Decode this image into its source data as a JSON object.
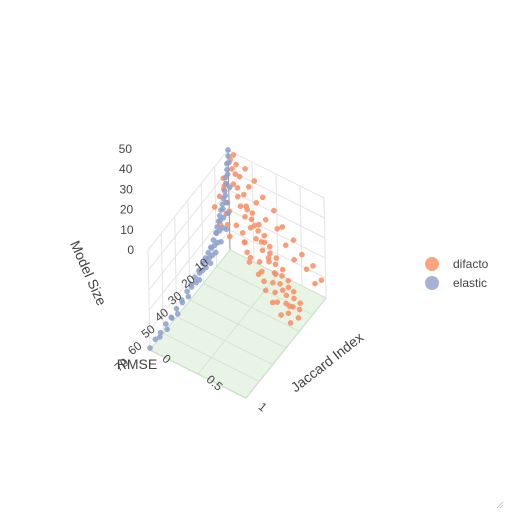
{
  "chart_data": {
    "type": "scatter",
    "title": "",
    "axes": {
      "x": {
        "label": "Jaccard Index",
        "range": [
          0,
          1
        ],
        "ticks": [
          "0",
          "0.5",
          "1"
        ]
      },
      "y": {
        "label": "RMSE",
        "range": [
          10,
          70
        ],
        "ticks": [
          "10",
          "20",
          "30",
          "40",
          "50",
          "60",
          "70"
        ]
      },
      "z": {
        "label": "Model Size",
        "range": [
          0,
          50
        ],
        "ticks": [
          "0",
          "10",
          "20",
          "30",
          "40",
          "50"
        ]
      }
    },
    "legend": {
      "placement": "right"
    },
    "series": [
      {
        "name": "difacto",
        "color": "#fc8d62",
        "description_points": [
          [
            0.05,
            12,
            48
          ],
          [
            0.08,
            13,
            45
          ],
          [
            0.1,
            12,
            42
          ],
          [
            0.12,
            15,
            40
          ],
          [
            0.15,
            14,
            38
          ],
          [
            0.18,
            16,
            36
          ],
          [
            0.2,
            13,
            35
          ],
          [
            0.22,
            17,
            33
          ],
          [
            0.25,
            15,
            32
          ],
          [
            0.28,
            18,
            30
          ],
          [
            0.3,
            14,
            29
          ],
          [
            0.32,
            16,
            28
          ],
          [
            0.35,
            19,
            27
          ],
          [
            0.38,
            15,
            26
          ],
          [
            0.4,
            17,
            25
          ],
          [
            0.42,
            20,
            24
          ],
          [
            0.45,
            16,
            23
          ],
          [
            0.48,
            18,
            22
          ],
          [
            0.5,
            21,
            21
          ],
          [
            0.52,
            17,
            20
          ],
          [
            0.55,
            19,
            19
          ],
          [
            0.58,
            22,
            18
          ],
          [
            0.6,
            18,
            17
          ],
          [
            0.62,
            20,
            16
          ],
          [
            0.65,
            23,
            15
          ],
          [
            0.68,
            19,
            14
          ],
          [
            0.7,
            21,
            13
          ],
          [
            0.72,
            24,
            12
          ],
          [
            0.75,
            20,
            11
          ],
          [
            0.78,
            22,
            10
          ],
          [
            0.8,
            25,
            9
          ],
          [
            0.82,
            21,
            8
          ],
          [
            0.85,
            23,
            7
          ],
          [
            0.88,
            26,
            6
          ],
          [
            0.9,
            22,
            5
          ],
          [
            0.92,
            24,
            4
          ],
          [
            0.95,
            27,
            3
          ],
          [
            0.06,
            18,
            44
          ],
          [
            0.09,
            20,
            41
          ],
          [
            0.14,
            22,
            37
          ],
          [
            0.17,
            24,
            34
          ],
          [
            0.21,
            26,
            31
          ],
          [
            0.26,
            28,
            28
          ],
          [
            0.31,
            22,
            26
          ],
          [
            0.36,
            24,
            24
          ],
          [
            0.41,
            26,
            22
          ],
          [
            0.46,
            28,
            20
          ],
          [
            0.51,
            24,
            18
          ],
          [
            0.56,
            26,
            16
          ],
          [
            0.61,
            28,
            14
          ],
          [
            0.66,
            25,
            12
          ],
          [
            0.71,
            27,
            10
          ],
          [
            0.76,
            29,
            8
          ],
          [
            0.81,
            26,
            6
          ],
          [
            0.86,
            28,
            4
          ],
          [
            0.91,
            30,
            2
          ],
          [
            0.07,
            11,
            50
          ],
          [
            0.11,
            12,
            47
          ],
          [
            0.16,
            13,
            43
          ],
          [
            0.24,
            12,
            39
          ],
          [
            0.33,
            13,
            34
          ],
          [
            0.44,
            14,
            29
          ],
          [
            0.53,
            12,
            25
          ],
          [
            0.63,
            13,
            20
          ],
          [
            0.73,
            14,
            16
          ],
          [
            0.83,
            12,
            12
          ],
          [
            0.93,
            13,
            8
          ],
          [
            0.13,
            19,
            30
          ],
          [
            0.23,
            21,
            27
          ],
          [
            0.34,
            23,
            23
          ],
          [
            0.43,
            25,
            19
          ],
          [
            0.54,
            27,
            15
          ],
          [
            0.64,
            29,
            11
          ],
          [
            0.74,
            31,
            9
          ],
          [
            0.84,
            32,
            6
          ],
          [
            0.19,
            11,
            46
          ],
          [
            0.27,
            10,
            41
          ],
          [
            0.37,
            11,
            36
          ],
          [
            0.47,
            10,
            31
          ],
          [
            0.57,
            11,
            26
          ],
          [
            0.67,
            10,
            21
          ],
          [
            0.77,
            11,
            17
          ],
          [
            0.87,
            10,
            13
          ],
          [
            0.97,
            11,
            9
          ],
          [
            0.29,
            17,
            33
          ],
          [
            0.39,
            19,
            29
          ],
          [
            0.49,
            21,
            25
          ],
          [
            0.59,
            23,
            21
          ],
          [
            0.69,
            25,
            17
          ],
          [
            0.79,
            27,
            13
          ],
          [
            0.89,
            29,
            9
          ],
          [
            0.04,
            16,
            38
          ],
          [
            0.03,
            19,
            35
          ],
          [
            0.02,
            22,
            32
          ],
          [
            0.12,
            25,
            28
          ]
        ]
      },
      {
        "name": "elastic",
        "color": "#8da0cb",
        "description_points": [
          [
            0.0,
            10,
            50
          ],
          [
            0.0,
            10,
            47
          ],
          [
            0.0,
            11,
            44
          ],
          [
            0.0,
            11,
            41
          ],
          [
            0.0,
            12,
            38
          ],
          [
            0.0,
            12,
            35
          ],
          [
            0.0,
            13,
            32
          ],
          [
            0.0,
            14,
            29
          ],
          [
            0.0,
            15,
            27
          ],
          [
            0.0,
            16,
            25
          ],
          [
            0.0,
            17,
            23
          ],
          [
            0.0,
            18,
            21
          ],
          [
            0.0,
            19,
            19
          ],
          [
            0.0,
            20,
            17
          ],
          [
            0.0,
            22,
            15
          ],
          [
            0.0,
            24,
            13
          ],
          [
            0.0,
            26,
            12
          ],
          [
            0.0,
            28,
            11
          ],
          [
            0.0,
            30,
            10
          ],
          [
            0.0,
            33,
            9
          ],
          [
            0.0,
            36,
            8
          ],
          [
            0.0,
            39,
            7
          ],
          [
            0.0,
            42,
            6
          ],
          [
            0.0,
            46,
            5
          ],
          [
            0.0,
            50,
            4
          ],
          [
            0.0,
            54,
            3
          ],
          [
            0.0,
            58,
            3
          ],
          [
            0.0,
            62,
            2
          ],
          [
            0.0,
            66,
            2
          ],
          [
            0.0,
            70,
            1
          ],
          [
            0.02,
            11,
            45
          ],
          [
            0.02,
            12,
            40
          ],
          [
            0.02,
            13,
            36
          ],
          [
            0.02,
            14,
            31
          ],
          [
            0.02,
            16,
            26
          ],
          [
            0.02,
            18,
            22
          ],
          [
            0.02,
            21,
            18
          ],
          [
            0.02,
            25,
            14
          ],
          [
            0.02,
            29,
            11
          ],
          [
            0.02,
            34,
            9
          ],
          [
            0.02,
            40,
            7
          ],
          [
            0.02,
            47,
            5
          ],
          [
            0.02,
            55,
            4
          ],
          [
            0.02,
            64,
            2
          ],
          [
            0.04,
            12,
            34
          ],
          [
            0.04,
            14,
            28
          ],
          [
            0.04,
            17,
            23
          ],
          [
            0.04,
            20,
            19
          ],
          [
            0.04,
            24,
            15
          ],
          [
            0.04,
            28,
            12
          ],
          [
            0.04,
            33,
            10
          ],
          [
            0.04,
            38,
            8
          ],
          [
            0.04,
            44,
            6
          ],
          [
            0.04,
            52,
            4
          ],
          [
            0.04,
            60,
            3
          ],
          [
            0.06,
            15,
            24
          ],
          [
            0.06,
            19,
            20
          ],
          [
            0.06,
            23,
            16
          ],
          [
            0.06,
            27,
            13
          ],
          [
            0.06,
            32,
            11
          ],
          [
            0.06,
            37,
            9
          ],
          [
            0.08,
            18,
            19
          ],
          [
            0.08,
            22,
            16
          ],
          [
            0.08,
            26,
            14
          ],
          [
            0.08,
            30,
            12
          ]
        ]
      }
    ]
  }
}
